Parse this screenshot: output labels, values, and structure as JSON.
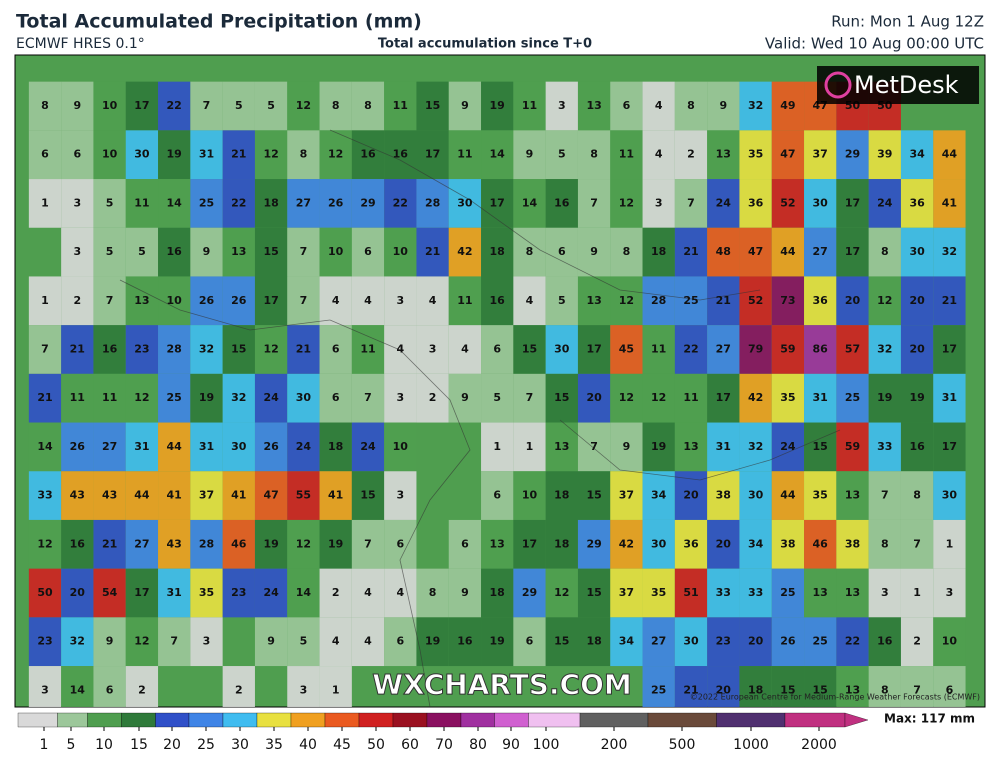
{
  "header": {
    "title": "Total Accumulated Precipitation (mm)",
    "model": "ECMWF HRES 0.1°",
    "subtitle": "Total accumulation since T+0",
    "run": "Run: Mon 1 Aug 12Z",
    "valid": "Valid: Wed 10 Aug 00:00 UTC"
  },
  "logo": "MetDesk",
  "watermark": "WXCHARTS.COM",
  "copyright": "©2022 European Centre for Medium-Range Weather Forecasts (ECMWF)",
  "grid": [
    [
      8,
      9,
      10,
      17,
      22,
      7,
      5,
      5,
      12,
      8,
      8,
      11,
      15,
      9,
      19,
      11,
      3,
      13,
      6,
      4,
      8,
      9,
      32,
      49,
      47,
      50,
      50,
      null,
      null
    ],
    [
      6,
      6,
      10,
      30,
      19,
      31,
      21,
      12,
      8,
      12,
      16,
      16,
      17,
      11,
      14,
      9,
      5,
      8,
      11,
      4,
      2,
      13,
      35,
      47,
      37,
      29,
      39,
      34,
      44
    ],
    [
      1,
      3,
      5,
      11,
      14,
      25,
      22,
      18,
      27,
      26,
      29,
      22,
      28,
      30,
      17,
      14,
      16,
      7,
      12,
      3,
      7,
      24,
      36,
      52,
      30,
      17,
      24,
      36,
      41
    ],
    [
      null,
      3,
      5,
      5,
      16,
      9,
      13,
      15,
      7,
      10,
      6,
      10,
      21,
      42,
      18,
      8,
      6,
      9,
      8,
      18,
      21,
      48,
      47,
      44,
      27,
      17,
      8,
      30,
      32
    ],
    [
      1,
      2,
      7,
      13,
      10,
      26,
      26,
      17,
      7,
      4,
      4,
      3,
      4,
      11,
      16,
      4,
      5,
      13,
      12,
      28,
      25,
      21,
      52,
      73,
      36,
      20,
      12,
      20,
      21
    ],
    [
      7,
      21,
      16,
      23,
      28,
      32,
      15,
      12,
      21,
      6,
      11,
      4,
      3,
      4,
      6,
      15,
      30,
      17,
      45,
      11,
      22,
      27,
      79,
      59,
      86,
      57,
      32,
      20,
      17
    ],
    [
      21,
      11,
      11,
      12,
      25,
      19,
      32,
      24,
      30,
      6,
      7,
      3,
      2,
      9,
      5,
      7,
      15,
      20,
      12,
      12,
      11,
      17,
      42,
      35,
      31,
      25,
      19,
      19,
      31
    ],
    [
      14,
      26,
      27,
      31,
      44,
      31,
      30,
      26,
      24,
      18,
      24,
      10,
      null,
      null,
      1,
      1,
      13,
      7,
      9,
      19,
      13,
      31,
      32,
      24,
      15,
      59,
      33,
      16,
      17
    ],
    [
      33,
      43,
      43,
      44,
      41,
      37,
      41,
      47,
      55,
      41,
      15,
      3,
      null,
      null,
      6,
      10,
      18,
      15,
      37,
      34,
      20,
      38,
      30,
      44,
      35,
      13,
      7,
      8,
      30
    ],
    [
      12,
      16,
      21,
      27,
      43,
      28,
      46,
      19,
      12,
      19,
      7,
      6,
      null,
      6,
      13,
      17,
      18,
      29,
      42,
      30,
      36,
      20,
      34,
      38,
      46,
      38,
      8,
      7,
      1
    ],
    [
      50,
      20,
      54,
      17,
      31,
      35,
      23,
      24,
      14,
      2,
      4,
      4,
      8,
      9,
      18,
      29,
      12,
      15,
      37,
      35,
      51,
      33,
      33,
      25,
      13,
      13,
      3,
      1,
      3
    ],
    [
      23,
      32,
      9,
      12,
      7,
      3,
      null,
      9,
      5,
      4,
      4,
      6,
      19,
      16,
      19,
      6,
      15,
      18,
      34,
      27,
      30,
      23,
      20,
      26,
      25,
      22,
      16,
      2,
      10
    ],
    [
      3,
      14,
      6,
      2,
      null,
      null,
      2,
      null,
      3,
      1,
      null,
      null,
      null,
      null,
      null,
      null,
      null,
      null,
      null,
      25,
      21,
      20,
      18,
      15,
      15,
      13,
      8,
      7,
      6
    ]
  ],
  "colorbar": {
    "levels": [
      1,
      5,
      10,
      15,
      20,
      25,
      30,
      35,
      40,
      45,
      50,
      60,
      70,
      80,
      90,
      100,
      200,
      500,
      1000,
      2000
    ],
    "colors": [
      "#d9d9d9",
      "#9cc79a",
      "#4f9e4f",
      "#2f7a3a",
      "#3050c8",
      "#3f84e6",
      "#3fbcf0",
      "#e8e040",
      "#f0a020",
      "#ea5a20",
      "#d02020",
      "#9a1020",
      "#8a1060",
      "#a030a0",
      "#d060d0",
      "#f0c0f0",
      "#606060",
      "#6a4a3a",
      "#503070",
      "#c03080"
    ],
    "max_label": "Max: 117 mm"
  }
}
